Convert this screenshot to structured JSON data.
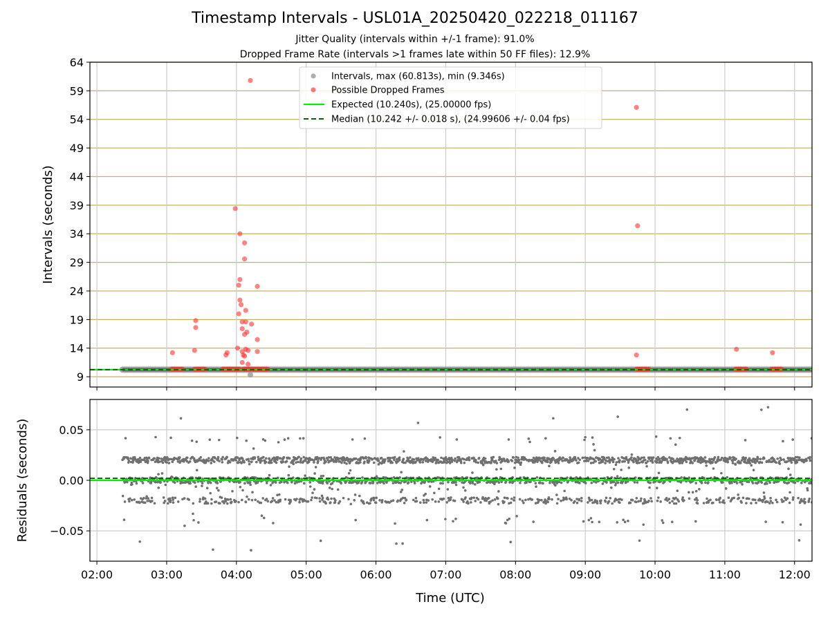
{
  "title": "Timestamp Intervals - USL01A_20250420_022218_011167",
  "subtitle_lines": [
    "Jitter Quality (intervals within +/-1 frame): 91.0%",
    "Dropped Frame Rate (intervals >1 frames late within 50 FF files): 12.9%"
  ],
  "colors": {
    "intervals": "#999999",
    "dropped": "#ff3030",
    "expected": "#00ee00",
    "median": "#006400",
    "residuals": "#707070",
    "hgrid_top": "#c8b45a",
    "grid": "#cccccc"
  },
  "chart_data": [
    {
      "type": "scatter",
      "panel": "intervals",
      "ylabel": "Intervals (seconds)",
      "xlabel": "",
      "x_units": "time UTC (hours)",
      "xlim": [
        1.9,
        12.25
      ],
      "ylim": [
        7.2,
        64
      ],
      "yticks": [
        9,
        14,
        19,
        24,
        29,
        34,
        39,
        44,
        49,
        54,
        59,
        64
      ],
      "grid": "on",
      "legend_position": "upper-center",
      "legend": [
        "Intervals, max (60.813s), min (9.346s)",
        "Possible Dropped Frames",
        "Expected (10.240s), (25.00000 fps)",
        "Median (10.242 +/- 0.018 s), (24.99606 +/- 0.04 fps)"
      ],
      "series": [
        {
          "name": "Intervals, max (60.813s), min (9.346s)",
          "style": "band",
          "x_range": [
            "02:22",
            "12:15"
          ],
          "y": 10.24,
          "min_point": {
            "x": "04:12",
            "y": 9.346
          }
        },
        {
          "name": "Possible Dropped Frames",
          "style": "scatter",
          "baseline_runs": [
            {
              "from": "03:04",
              "to": "03:14",
              "y": 10.32
            },
            {
              "from": "03:24",
              "to": "03:33",
              "y": 10.32
            },
            {
              "from": "03:48",
              "to": "04:03",
              "y": 10.32
            },
            {
              "from": "04:06",
              "to": "04:27",
              "y": 10.32
            },
            {
              "from": "09:44",
              "to": "09:55",
              "y": 10.32
            },
            {
              "from": "11:09",
              "to": "11:19",
              "y": 10.32
            },
            {
              "from": "11:40",
              "to": "11:49",
              "y": 10.32
            }
          ],
          "points": [
            {
              "x": "03:05",
              "y": 13.2
            },
            {
              "x": "03:25",
              "y": 18.8
            },
            {
              "x": "03:25",
              "y": 17.6
            },
            {
              "x": "03:24",
              "y": 13.6
            },
            {
              "x": "03:51",
              "y": 12.8
            },
            {
              "x": "03:52",
              "y": 13.2
            },
            {
              "x": "03:59",
              "y": 38.4
            },
            {
              "x": "04:03",
              "y": 34.0
            },
            {
              "x": "04:07",
              "y": 32.4
            },
            {
              "x": "04:07",
              "y": 29.6
            },
            {
              "x": "04:03",
              "y": 26.0
            },
            {
              "x": "04:02",
              "y": 25.0
            },
            {
              "x": "04:03",
              "y": 22.4
            },
            {
              "x": "04:04",
              "y": 21.6
            },
            {
              "x": "04:08",
              "y": 20.6
            },
            {
              "x": "04:02",
              "y": 20.0
            },
            {
              "x": "04:05",
              "y": 18.6
            },
            {
              "x": "04:08",
              "y": 18.6
            },
            {
              "x": "04:13",
              "y": 18.2
            },
            {
              "x": "04:05",
              "y": 17.4
            },
            {
              "x": "04:09",
              "y": 16.8
            },
            {
              "x": "04:07",
              "y": 16.4
            },
            {
              "x": "04:18",
              "y": 15.5
            },
            {
              "x": "04:01",
              "y": 14.0
            },
            {
              "x": "04:08",
              "y": 13.8
            },
            {
              "x": "04:05",
              "y": 13.4
            },
            {
              "x": "04:10",
              "y": 13.6
            },
            {
              "x": "04:18",
              "y": 13.4
            },
            {
              "x": "04:06",
              "y": 12.8
            },
            {
              "x": "04:07",
              "y": 12.6
            },
            {
              "x": "04:05",
              "y": 11.5
            },
            {
              "x": "04:10",
              "y": 11.2
            },
            {
              "x": "04:12",
              "y": 60.8
            },
            {
              "x": "04:18",
              "y": 24.8
            },
            {
              "x": "09:44",
              "y": 56.1
            },
            {
              "x": "09:45",
              "y": 35.4
            },
            {
              "x": "09:44",
              "y": 12.8
            },
            {
              "x": "11:10",
              "y": 13.8
            },
            {
              "x": "11:41",
              "y": 13.2
            }
          ]
        },
        {
          "name": "Expected (10.240s), (25.00000 fps)",
          "style": "solid-line",
          "y": 10.24
        },
        {
          "name": "Median (10.242 +/- 0.018 s), (24.99606 +/- 0.04 fps)",
          "style": "dashed-line",
          "y": 10.242
        }
      ]
    },
    {
      "type": "scatter",
      "panel": "residuals",
      "ylabel": "Residuals (seconds)",
      "xlabel": "Time (UTC)",
      "xlim": [
        1.9,
        12.25
      ],
      "ylim": [
        -0.08,
        0.08
      ],
      "yticks": [
        -0.05,
        0.0,
        0.05
      ],
      "ytick_labels": [
        "−0.05",
        "0.00",
        "0.05"
      ],
      "xticks": [
        "02:00",
        "03:00",
        "04:00",
        "05:00",
        "06:00",
        "07:00",
        "08:00",
        "09:00",
        "10:00",
        "11:00",
        "12:00"
      ],
      "grid": "on",
      "series": [
        {
          "name": "Residuals",
          "x_range": [
            "02:22",
            "12:15"
          ],
          "levels": [
            0.02,
            0.0,
            -0.02
          ],
          "spread": 0.003,
          "outlier_range": [
            -0.075,
            0.078
          ]
        },
        {
          "name": "Expected",
          "style": "solid-line",
          "y": 0.0
        },
        {
          "name": "Median",
          "style": "dashed-line",
          "y": 0.002
        }
      ]
    }
  ]
}
